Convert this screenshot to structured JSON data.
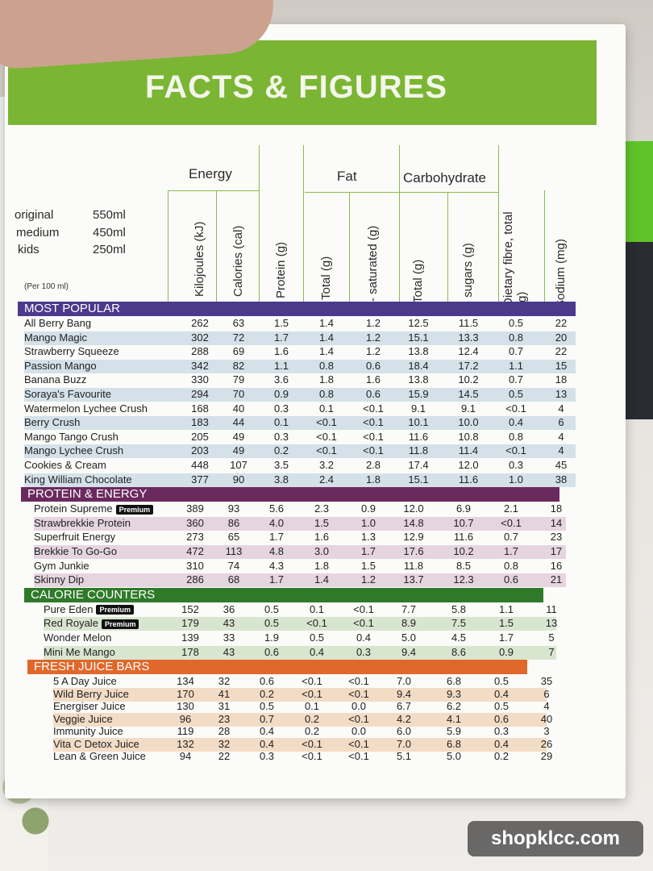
{
  "title": "FACTS & FIGURES",
  "serving_sizes": [
    {
      "label": "original",
      "value": "550ml"
    },
    {
      "label": "medium",
      "value": "450ml"
    },
    {
      "label": "kids",
      "value": "250ml"
    }
  ],
  "per_100": "(Per 100 ml)",
  "groups": {
    "energy": "Energy",
    "fat": "Fat",
    "carbohydrate": "Carbohydrate"
  },
  "columns": [
    "Kilojoules (kJ)",
    "Calories (cal)",
    "Protein (g)",
    "Total (g)",
    "- saturated (g)",
    "Total (g)",
    "- sugars (g)",
    "Dietary fibre, total (g)",
    "Sodium (mg)"
  ],
  "premium_label": "Premium",
  "colors": {
    "banner": "#7bb534",
    "most_popular": "#4b3a8c",
    "protein_energy": "#6b2a5e",
    "calorie_counters": "#2f7a2a",
    "fresh_juice_bars": "#e0682b"
  },
  "sections": [
    {
      "name": "MOST POPULAR",
      "color": "#4b3a8c",
      "row_tint": "#d4e1e8",
      "rows": [
        {
          "name": "All Berry Bang",
          "premium": false,
          "values": [
            "262",
            "63",
            "1.5",
            "1.4",
            "1.2",
            "12.5",
            "11.5",
            "0.5",
            "22"
          ]
        },
        {
          "name": "Mango Magic",
          "premium": false,
          "values": [
            "302",
            "72",
            "1.7",
            "1.4",
            "1.2",
            "15.1",
            "13.3",
            "0.8",
            "20"
          ]
        },
        {
          "name": "Strawberry Squeeze",
          "premium": false,
          "values": [
            "288",
            "69",
            "1.6",
            "1.4",
            "1.2",
            "13.8",
            "12.4",
            "0.7",
            "22"
          ]
        },
        {
          "name": "Passion Mango",
          "premium": false,
          "values": [
            "342",
            "82",
            "1.1",
            "0.8",
            "0.6",
            "18.4",
            "17.2",
            "1.1",
            "15"
          ]
        },
        {
          "name": "Banana Buzz",
          "premium": false,
          "values": [
            "330",
            "79",
            "3.6",
            "1.8",
            "1.6",
            "13.8",
            "10.2",
            "0.7",
            "18"
          ]
        },
        {
          "name": "Soraya's Favourite",
          "premium": false,
          "values": [
            "294",
            "70",
            "0.9",
            "0.8",
            "0.6",
            "15.9",
            "14.5",
            "0.5",
            "13"
          ]
        },
        {
          "name": "Watermelon Lychee Crush",
          "premium": false,
          "values": [
            "168",
            "40",
            "0.3",
            "0.1",
            "<0.1",
            "9.1",
            "9.1",
            "<0.1",
            "4"
          ]
        },
        {
          "name": "Berry Crush",
          "premium": false,
          "values": [
            "183",
            "44",
            "0.1",
            "<0.1",
            "<0.1",
            "10.1",
            "10.0",
            "0.4",
            "6"
          ]
        },
        {
          "name": "Mango Tango Crush",
          "premium": false,
          "values": [
            "205",
            "49",
            "0.3",
            "<0.1",
            "<0.1",
            "11.6",
            "10.8",
            "0.8",
            "4"
          ]
        },
        {
          "name": "Mango Lychee Crush",
          "premium": false,
          "values": [
            "203",
            "49",
            "0.2",
            "<0.1",
            "<0.1",
            "11.8",
            "11.4",
            "<0.1",
            "4"
          ]
        },
        {
          "name": "Cookies & Cream",
          "premium": false,
          "values": [
            "448",
            "107",
            "3.5",
            "3.2",
            "2.8",
            "17.4",
            "12.0",
            "0.3",
            "45"
          ]
        },
        {
          "name": "King William Chocolate",
          "premium": false,
          "values": [
            "377",
            "90",
            "3.8",
            "2.4",
            "1.8",
            "15.1",
            "11.6",
            "1.0",
            "38"
          ]
        }
      ]
    },
    {
      "name": "PROTEIN & ENERGY",
      "color": "#6b2a5e",
      "row_tint": "#e5d5de",
      "rows": [
        {
          "name": "Protein Supreme",
          "premium": true,
          "values": [
            "389",
            "93",
            "5.6",
            "2.3",
            "0.9",
            "12.0",
            "6.9",
            "2.1",
            "18"
          ]
        },
        {
          "name": "Strawbrekkie Protein",
          "premium": false,
          "values": [
            "360",
            "86",
            "4.0",
            "1.5",
            "1.0",
            "14.8",
            "10.7",
            "<0.1",
            "14"
          ]
        },
        {
          "name": "Superfruit Energy",
          "premium": false,
          "values": [
            "273",
            "65",
            "1.7",
            "1.6",
            "1.3",
            "12.9",
            "11.6",
            "0.7",
            "23"
          ]
        },
        {
          "name": "Brekkie To Go-Go",
          "premium": false,
          "values": [
            "472",
            "113",
            "4.8",
            "3.0",
            "1.7",
            "17.6",
            "10.2",
            "1.7",
            "17"
          ]
        },
        {
          "name": "Gym Junkie",
          "premium": false,
          "values": [
            "310",
            "74",
            "4.3",
            "1.8",
            "1.5",
            "11.8",
            "8.5",
            "0.8",
            "16"
          ]
        },
        {
          "name": "Skinny Dip",
          "premium": false,
          "values": [
            "286",
            "68",
            "1.7",
            "1.4",
            "1.2",
            "13.7",
            "12.3",
            "0.6",
            "21"
          ]
        }
      ]
    },
    {
      "name": "CALORIE COUNTERS",
      "color": "#2f7a2a",
      "row_tint": "#d8e6d0",
      "rows": [
        {
          "name": "Pure Eden",
          "premium": true,
          "values": [
            "152",
            "36",
            "0.5",
            "0.1",
            "<0.1",
            "7.7",
            "5.8",
            "1.1",
            "11"
          ]
        },
        {
          "name": "Red Royale",
          "premium": true,
          "values": [
            "179",
            "43",
            "0.5",
            "<0.1",
            "<0.1",
            "8.9",
            "7.5",
            "1.5",
            "13"
          ]
        },
        {
          "name": "Wonder Melon",
          "premium": false,
          "values": [
            "139",
            "33",
            "1.9",
            "0.5",
            "0.4",
            "5.0",
            "4.5",
            "1.7",
            "5"
          ]
        },
        {
          "name": "Mini Me Mango",
          "premium": false,
          "values": [
            "178",
            "43",
            "0.6",
            "0.4",
            "0.3",
            "9.4",
            "8.6",
            "0.9",
            "7"
          ]
        }
      ]
    },
    {
      "name": "FRESH JUICE BARS",
      "color": "#e0682b",
      "row_tint": "#f3dcc6",
      "rows": [
        {
          "name": "5 A Day Juice",
          "premium": false,
          "values": [
            "134",
            "32",
            "0.6",
            "<0.1",
            "<0.1",
            "7.0",
            "6.8",
            "0.5",
            "35"
          ]
        },
        {
          "name": "Wild Berry Juice",
          "premium": false,
          "values": [
            "170",
            "41",
            "0.2",
            "<0.1",
            "<0.1",
            "9.4",
            "9.3",
            "0.4",
            "6"
          ]
        },
        {
          "name": "Energiser Juice",
          "premium": false,
          "values": [
            "130",
            "31",
            "0.5",
            "0.1",
            "0.0",
            "6.7",
            "6.2",
            "0.5",
            "4"
          ]
        },
        {
          "name": "Veggie Juice",
          "premium": false,
          "values": [
            "96",
            "23",
            "0.7",
            "0.2",
            "<0.1",
            "4.2",
            "4.1",
            "0.6",
            "40"
          ]
        },
        {
          "name": "Immunity Juice",
          "premium": false,
          "values": [
            "119",
            "28",
            "0.4",
            "0.2",
            "0.0",
            "6.0",
            "5.9",
            "0.3",
            "3"
          ]
        },
        {
          "name": "Vita C Detox Juice",
          "premium": false,
          "values": [
            "132",
            "32",
            "0.4",
            "<0.1",
            "<0.1",
            "7.0",
            "6.8",
            "0.4",
            "26"
          ]
        },
        {
          "name": "Lean & Green Juice",
          "premium": false,
          "values": [
            "94",
            "22",
            "0.3",
            "<0.1",
            "<0.1",
            "5.1",
            "5.0",
            "0.2",
            "29"
          ]
        }
      ]
    }
  ],
  "watermark": "shopklcc.com"
}
